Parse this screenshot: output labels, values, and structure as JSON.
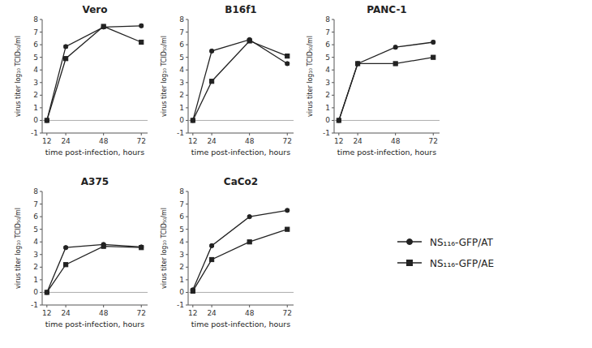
{
  "chart_data": [
    {
      "type": "line",
      "title": "Vero",
      "x": [
        12,
        24,
        48,
        72
      ],
      "xlim": [
        9,
        76
      ],
      "xticks": [
        12,
        24,
        48,
        72
      ],
      "ylim": [
        -1,
        8
      ],
      "yticks": [
        -1,
        0,
        1,
        2,
        3,
        4,
        5,
        6,
        7,
        8
      ],
      "grid": false,
      "xlabel": "time post-infection, hours",
      "ylabel": "virus titer log₁₀ TCID₅₀/ml",
      "series": [
        {
          "name": "NS₁₁₆-GFP/AT",
          "color": "#222222",
          "marker": "circle",
          "line_style": "solid",
          "values": [
            0,
            5.85,
            7.4,
            7.5
          ],
          "errors": [
            0.05,
            0.12,
            0.1,
            0.12
          ]
        },
        {
          "name": "NS₁₁₆-GFP/AE",
          "color": "#222222",
          "marker": "square",
          "line_style": "solid",
          "values": [
            0,
            4.9,
            7.45,
            6.2
          ],
          "errors": [
            0.05,
            0.12,
            0.1,
            0.15
          ]
        }
      ]
    },
    {
      "type": "line",
      "title": "B16f1",
      "x": [
        12,
        24,
        48,
        72
      ],
      "xlim": [
        9,
        76
      ],
      "xticks": [
        12,
        24,
        48,
        72
      ],
      "ylim": [
        -1,
        8
      ],
      "yticks": [
        -1,
        0,
        1,
        2,
        3,
        4,
        5,
        6,
        7,
        8
      ],
      "grid": false,
      "xlabel": "time post-infection, hours",
      "ylabel": "virus titer log₁₀ TCID₅₀/ml",
      "series": [
        {
          "name": "NS₁₁₆-GFP/AT",
          "color": "#222222",
          "marker": "circle",
          "line_style": "solid",
          "values": [
            0,
            5.5,
            6.4,
            4.5
          ],
          "errors": [
            0.05,
            0.1,
            0.1,
            0.12
          ]
        },
        {
          "name": "NS₁₁₆-GFP/AE",
          "color": "#222222",
          "marker": "square",
          "line_style": "solid",
          "values": [
            0,
            3.1,
            6.3,
            5.1
          ],
          "errors": [
            0.05,
            0.12,
            0.1,
            0.1
          ]
        }
      ]
    },
    {
      "type": "line",
      "title": "PANC-1",
      "x": [
        12,
        24,
        48,
        72
      ],
      "xlim": [
        9,
        76
      ],
      "xticks": [
        12,
        24,
        48,
        72
      ],
      "ylim": [
        -1,
        8
      ],
      "yticks": [
        -1,
        0,
        1,
        2,
        3,
        4,
        5,
        6,
        7,
        8
      ],
      "grid": false,
      "xlabel": "time post-infection, hours",
      "ylabel": "virus titer log₁₀ TCID₅₀/ml",
      "series": [
        {
          "name": "NS₁₁₆-GFP/AT",
          "color": "#222222",
          "marker": "circle",
          "line_style": "solid",
          "values": [
            0,
            4.5,
            5.8,
            6.2
          ],
          "errors": [
            0.05,
            0.1,
            0.12,
            0.12
          ]
        },
        {
          "name": "NS₁₁₆-GFP/AE",
          "color": "#222222",
          "marker": "square",
          "line_style": "solid",
          "values": [
            0,
            4.5,
            4.5,
            5.0
          ],
          "errors": [
            0.05,
            0.1,
            0.1,
            0.1
          ]
        }
      ]
    },
    {
      "type": "line",
      "title": "A375",
      "x": [
        12,
        24,
        48,
        72
      ],
      "xlim": [
        9,
        76
      ],
      "xticks": [
        12,
        24,
        48,
        72
      ],
      "ylim": [
        -1,
        8
      ],
      "yticks": [
        -1,
        0,
        1,
        2,
        3,
        4,
        5,
        6,
        7,
        8
      ],
      "grid": false,
      "xlabel": "time post-infection, hours",
      "ylabel": "virus titer log₁₀ TCID₅₀/ml",
      "series": [
        {
          "name": "NS₁₁₆-GFP/AT",
          "color": "#222222",
          "marker": "circle",
          "line_style": "solid",
          "values": [
            0,
            3.55,
            3.8,
            3.6
          ],
          "errors": [
            0.05,
            0.1,
            0.1,
            0.1
          ]
        },
        {
          "name": "NS₁₁₆-GFP/AE",
          "color": "#222222",
          "marker": "square",
          "line_style": "solid",
          "values": [
            0,
            2.2,
            3.65,
            3.55
          ],
          "errors": [
            0.05,
            0.1,
            0.1,
            0.1
          ]
        }
      ]
    },
    {
      "type": "line",
      "title": "CaCo2",
      "x": [
        12,
        24,
        48,
        72
      ],
      "xlim": [
        9,
        76
      ],
      "xticks": [
        12,
        24,
        48,
        72
      ],
      "ylim": [
        -1,
        8
      ],
      "yticks": [
        -1,
        0,
        1,
        2,
        3,
        4,
        5,
        6,
        7,
        8
      ],
      "grid": false,
      "xlabel": "time post-infection, hours",
      "ylabel": "virus titer log₁₀ TCID₅₀/ml",
      "series": [
        {
          "name": "NS₁₁₆-GFP/AT",
          "color": "#222222",
          "marker": "circle",
          "line_style": "solid",
          "values": [
            0.2,
            3.7,
            6.0,
            6.5
          ],
          "errors": [
            0.12,
            0.1,
            0.1,
            0.1
          ]
        },
        {
          "name": "NS₁₁₆-GFP/AE",
          "color": "#222222",
          "marker": "square",
          "line_style": "solid",
          "values": [
            0.1,
            2.6,
            4.0,
            5.0
          ],
          "errors": [
            0.1,
            0.1,
            0.1,
            0.1
          ]
        }
      ]
    }
  ]
}
